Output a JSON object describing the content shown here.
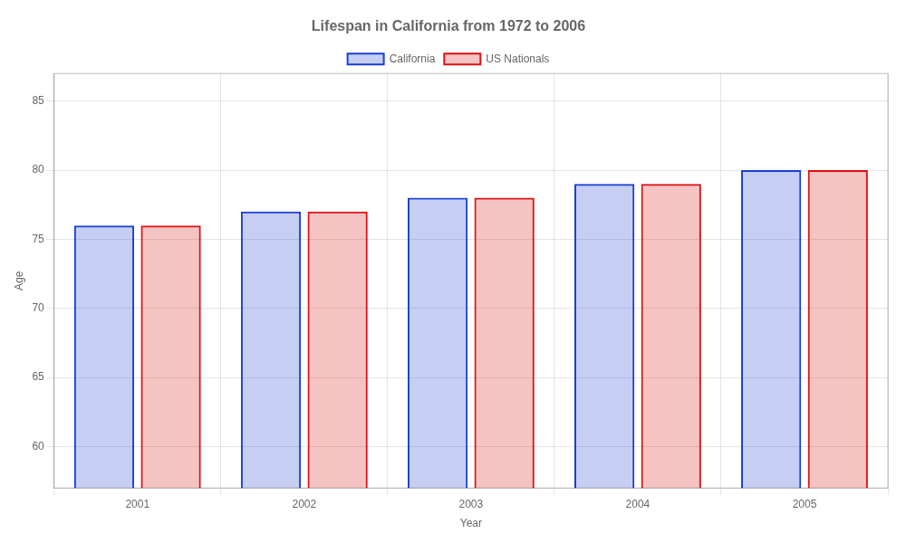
{
  "chart_data": {
    "type": "bar",
    "title": "Lifespan in California from 1972 to 2006",
    "xlabel": "Year",
    "ylabel": "Age",
    "categories": [
      2001,
      2002,
      2003,
      2004,
      2005
    ],
    "series": [
      {
        "name": "California",
        "color": "#1a3fcf",
        "values": [
          76,
          77,
          78,
          79,
          80
        ]
      },
      {
        "name": "US Nationals",
        "color": "#dd1111",
        "values": [
          76,
          77,
          78,
          79,
          80
        ]
      }
    ],
    "ylim": [
      57,
      87
    ],
    "yticks": [
      60,
      65,
      70,
      75,
      80,
      85
    ],
    "grid": true,
    "legend": "top"
  }
}
